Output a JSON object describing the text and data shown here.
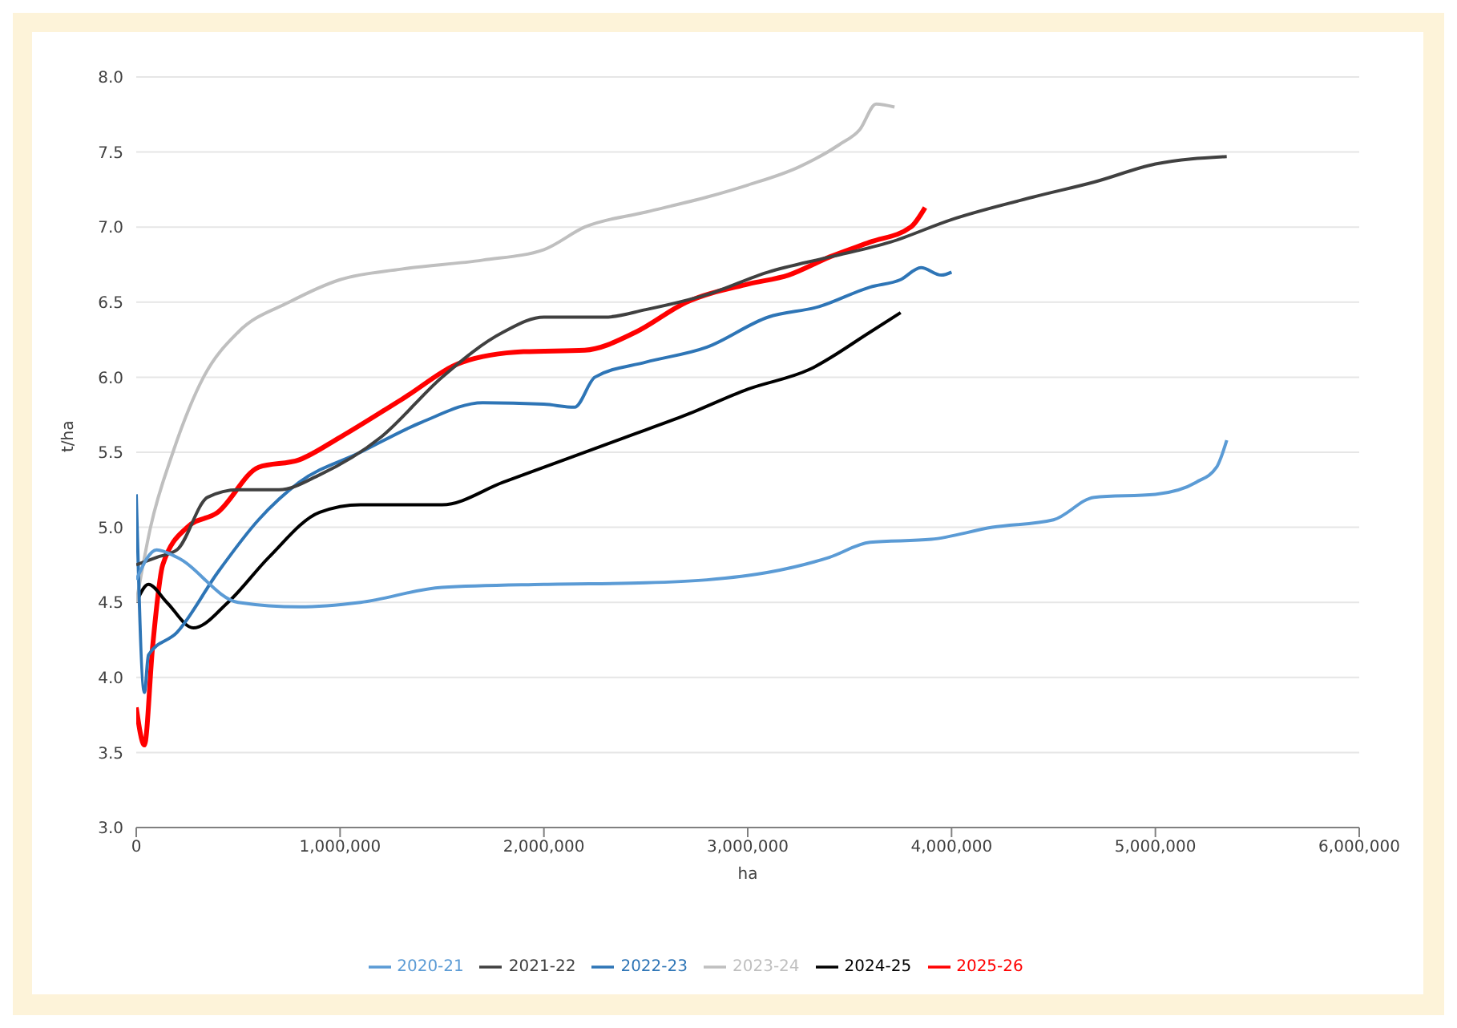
{
  "chart_data": {
    "type": "line",
    "xlabel": "ha",
    "ylabel": "t/ha",
    "xlim": [
      0,
      6000000
    ],
    "xticks": [
      {
        "value": 0,
        "label": "0"
      },
      {
        "value": 1000000,
        "label": "1,000,000"
      },
      {
        "value": 2000000,
        "label": "2,000,000"
      },
      {
        "value": 3000000,
        "label": "3,000,000"
      },
      {
        "value": 4000000,
        "label": "4,000,000"
      },
      {
        "value": 5000000,
        "label": "5,000,000"
      },
      {
        "value": 6000000,
        "label": "6,000,000"
      }
    ],
    "ylim": [
      3,
      8
    ],
    "yticks": [
      {
        "value": 3,
        "label": "3.0"
      },
      {
        "value": 3.5,
        "label": "3.5"
      },
      {
        "value": 4,
        "label": "4.0"
      },
      {
        "value": 4.5,
        "label": "4.5"
      },
      {
        "value": 5,
        "label": "5.0"
      },
      {
        "value": 5.5,
        "label": "5.5"
      },
      {
        "value": 6,
        "label": "6.0"
      },
      {
        "value": 6.5,
        "label": "6.5"
      },
      {
        "value": 7,
        "label": "7.0"
      },
      {
        "value": 7.5,
        "label": "7.5"
      },
      {
        "value": 8,
        "label": "8.0"
      }
    ],
    "grid": "y",
    "legend": "bottom",
    "marker": "none",
    "line_style": "solid",
    "series": [
      {
        "name": "2020-21",
        "color": "#5b9bd5",
        "x": [
          0,
          100000,
          200000,
          500000,
          800000,
          1100000,
          1500000,
          2000000,
          2500000,
          2800000,
          3100000,
          3400000,
          3600000,
          3900000,
          4200000,
          4500000,
          4700000,
          5000000,
          5200000,
          5300000,
          5350000
        ],
        "values": [
          4.65,
          4.85,
          4.8,
          4.5,
          4.47,
          4.5,
          4.6,
          4.62,
          4.63,
          4.65,
          4.7,
          4.8,
          4.9,
          4.92,
          5.0,
          5.05,
          5.2,
          5.22,
          5.3,
          5.4,
          5.58
        ]
      },
      {
        "name": "2021-22",
        "color": "#404040",
        "x": [
          0,
          100000,
          200000,
          350000,
          500000,
          700000,
          900000,
          1200000,
          1500000,
          1800000,
          2000000,
          2300000,
          2500000,
          2800000,
          3100000,
          3400000,
          3700000,
          4000000,
          4400000,
          4700000,
          5000000,
          5350000
        ],
        "values": [
          4.75,
          4.8,
          4.85,
          5.2,
          5.25,
          5.25,
          5.35,
          5.6,
          6.0,
          6.3,
          6.4,
          6.4,
          6.45,
          6.55,
          6.7,
          6.8,
          6.9,
          7.05,
          7.2,
          7.3,
          7.42,
          7.47
        ]
      },
      {
        "name": "2022-23",
        "color": "#2e75b6",
        "x": [
          0,
          40000,
          60000,
          200000,
          400000,
          600000,
          800000,
          1100000,
          1400000,
          1700000,
          2000000,
          2150000,
          2250000,
          2500000,
          2800000,
          3100000,
          3350000,
          3600000,
          3750000,
          3850000,
          3950000,
          4000000
        ],
        "values": [
          5.22,
          3.9,
          4.15,
          4.3,
          4.7,
          5.05,
          5.3,
          5.5,
          5.7,
          5.83,
          5.82,
          5.8,
          6.0,
          6.1,
          6.2,
          6.4,
          6.47,
          6.6,
          6.65,
          6.73,
          6.68,
          6.7
        ]
      },
      {
        "name": "2023-24",
        "color": "#bfbfbf",
        "x": [
          0,
          70000,
          180000,
          330000,
          500000,
          750000,
          1000000,
          1300000,
          1700000,
          2000000,
          2200000,
          2500000,
          2800000,
          3000000,
          3250000,
          3450000,
          3550000,
          3630000,
          3720000
        ],
        "values": [
          4.5,
          5.0,
          5.5,
          6.0,
          6.3,
          6.5,
          6.65,
          6.72,
          6.78,
          6.85,
          7.0,
          7.1,
          7.2,
          7.28,
          7.4,
          7.55,
          7.65,
          7.82,
          7.8
        ]
      },
      {
        "name": "2024-25",
        "color": "#000000",
        "x": [
          0,
          60000,
          150000,
          280000,
          450000,
          650000,
          900000,
          1100000,
          1500000,
          1800000,
          2100000,
          2400000,
          2700000,
          3000000,
          3300000,
          3600000,
          3750000
        ],
        "values": [
          4.5,
          4.62,
          4.5,
          4.33,
          4.5,
          4.8,
          5.1,
          5.15,
          5.15,
          5.3,
          5.45,
          5.6,
          5.75,
          5.92,
          6.05,
          6.3,
          6.43
        ]
      },
      {
        "name": "2025-26",
        "color": "#ff0000",
        "x": [
          0,
          40000,
          80000,
          130000,
          250000,
          400000,
          600000,
          800000,
          1000000,
          1300000,
          1600000,
          1900000,
          2200000,
          2450000,
          2700000,
          3000000,
          3200000,
          3400000,
          3600000,
          3800000,
          3870000
        ],
        "values": [
          3.8,
          3.55,
          4.2,
          4.75,
          5.0,
          5.1,
          5.4,
          5.45,
          5.6,
          5.85,
          6.1,
          6.17,
          6.18,
          6.3,
          6.5,
          6.62,
          6.68,
          6.8,
          6.9,
          7.0,
          7.13
        ]
      }
    ]
  }
}
